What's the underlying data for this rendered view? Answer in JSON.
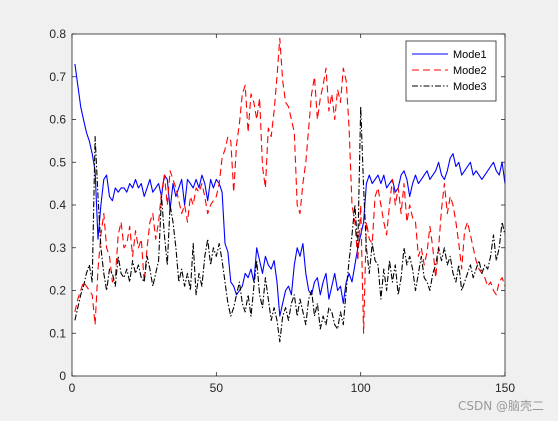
{
  "watermark": "CSDN @脑壳二",
  "chart_data": {
    "type": "line",
    "xlim": [
      0,
      150
    ],
    "ylim": [
      0,
      0.8
    ],
    "xticks": [
      0,
      50,
      100,
      150
    ],
    "yticks": [
      0,
      0.1,
      0.2,
      0.3,
      0.4,
      0.5,
      0.6,
      0.7,
      0.8
    ],
    "grid": false,
    "legend_position": "top-right",
    "x": [
      1,
      2,
      3,
      4,
      5,
      6,
      7,
      8,
      9,
      10,
      11,
      12,
      13,
      14,
      15,
      16,
      17,
      18,
      19,
      20,
      21,
      22,
      23,
      24,
      25,
      26,
      27,
      28,
      29,
      30,
      31,
      32,
      33,
      34,
      35,
      36,
      37,
      38,
      39,
      40,
      41,
      42,
      43,
      44,
      45,
      46,
      47,
      48,
      49,
      50,
      51,
      52,
      53,
      54,
      55,
      56,
      57,
      58,
      59,
      60,
      61,
      62,
      63,
      64,
      65,
      66,
      67,
      68,
      69,
      70,
      71,
      72,
      73,
      74,
      75,
      76,
      77,
      78,
      79,
      80,
      81,
      82,
      83,
      84,
      85,
      86,
      87,
      88,
      89,
      90,
      91,
      92,
      93,
      94,
      95,
      96,
      97,
      98,
      99,
      100,
      101,
      102,
      103,
      104,
      105,
      106,
      107,
      108,
      109,
      110,
      111,
      112,
      113,
      114,
      115,
      116,
      117,
      118,
      119,
      120,
      121,
      122,
      123,
      124,
      125,
      126,
      127,
      128,
      129,
      130,
      131,
      132,
      133,
      134,
      135,
      136,
      137,
      138,
      139,
      140,
      141,
      142,
      143,
      144,
      145,
      146,
      147,
      148,
      149,
      150
    ],
    "series": [
      {
        "name": "Mode1",
        "color": "#0000ff",
        "dash": "solid",
        "values": [
          0.73,
          0.68,
          0.63,
          0.6,
          0.57,
          0.55,
          0.52,
          0.48,
          0.32,
          0.4,
          0.46,
          0.47,
          0.42,
          0.41,
          0.44,
          0.43,
          0.44,
          0.44,
          0.43,
          0.45,
          0.44,
          0.46,
          0.44,
          0.45,
          0.42,
          0.44,
          0.46,
          0.43,
          0.44,
          0.45,
          0.42,
          0.47,
          0.46,
          0.39,
          0.45,
          0.42,
          0.44,
          0.46,
          0.4,
          0.46,
          0.45,
          0.44,
          0.46,
          0.44,
          0.47,
          0.45,
          0.41,
          0.46,
          0.44,
          0.46,
          0.45,
          0.43,
          0.31,
          0.29,
          0.22,
          0.21,
          0.19,
          0.2,
          0.21,
          0.24,
          0.23,
          0.25,
          0.22,
          0.3,
          0.27,
          0.24,
          0.28,
          0.26,
          0.25,
          0.27,
          0.22,
          0.14,
          0.17,
          0.2,
          0.21,
          0.19,
          0.26,
          0.3,
          0.28,
          0.31,
          0.24,
          0.2,
          0.19,
          0.22,
          0.23,
          0.19,
          0.22,
          0.24,
          0.18,
          0.21,
          0.24,
          0.2,
          0.21,
          0.17,
          0.22,
          0.24,
          0.22,
          0.26,
          0.3,
          0.33,
          0.36,
          0.45,
          0.47,
          0.45,
          0.46,
          0.47,
          0.45,
          0.47,
          0.44,
          0.45,
          0.46,
          0.43,
          0.44,
          0.47,
          0.48,
          0.46,
          0.42,
          0.45,
          0.47,
          0.45,
          0.46,
          0.47,
          0.48,
          0.46,
          0.47,
          0.48,
          0.5,
          0.47,
          0.46,
          0.48,
          0.51,
          0.52,
          0.49,
          0.5,
          0.47,
          0.48,
          0.49,
          0.5,
          0.47,
          0.48,
          0.47,
          0.46,
          0.47,
          0.48,
          0.49,
          0.5,
          0.48,
          0.47,
          0.5,
          0.45
        ]
      },
      {
        "name": "Mode2",
        "color": "#ff0000",
        "dash": "7,4",
        "values": [
          0.15,
          0.18,
          0.2,
          0.22,
          0.21,
          0.2,
          0.19,
          0.12,
          0.25,
          0.33,
          0.38,
          0.3,
          0.28,
          0.22,
          0.23,
          0.33,
          0.36,
          0.3,
          0.31,
          0.35,
          0.28,
          0.34,
          0.3,
          0.32,
          0.22,
          0.3,
          0.36,
          0.38,
          0.32,
          0.36,
          0.43,
          0.47,
          0.4,
          0.48,
          0.46,
          0.44,
          0.41,
          0.38,
          0.4,
          0.36,
          0.42,
          0.4,
          0.44,
          0.43,
          0.45,
          0.42,
          0.38,
          0.4,
          0.41,
          0.42,
          0.45,
          0.51,
          0.53,
          0.56,
          0.55,
          0.43,
          0.54,
          0.59,
          0.66,
          0.68,
          0.57,
          0.66,
          0.64,
          0.6,
          0.65,
          0.49,
          0.44,
          0.58,
          0.56,
          0.62,
          0.7,
          0.79,
          0.69,
          0.64,
          0.63,
          0.6,
          0.57,
          0.4,
          0.38,
          0.45,
          0.5,
          0.58,
          0.66,
          0.7,
          0.6,
          0.65,
          0.68,
          0.72,
          0.62,
          0.66,
          0.6,
          0.67,
          0.64,
          0.72,
          0.69,
          0.58,
          0.4,
          0.36,
          0.27,
          0.4,
          0.1,
          0.36,
          0.32,
          0.31,
          0.42,
          0.44,
          0.4,
          0.36,
          0.33,
          0.4,
          0.46,
          0.4,
          0.44,
          0.38,
          0.45,
          0.36,
          0.4,
          0.37,
          0.36,
          0.28,
          0.3,
          0.26,
          0.29,
          0.35,
          0.3,
          0.23,
          0.3,
          0.39,
          0.45,
          0.38,
          0.42,
          0.4,
          0.36,
          0.31,
          0.25,
          0.34,
          0.36,
          0.33,
          0.3,
          0.27,
          0.25,
          0.24,
          0.23,
          0.21,
          0.22,
          0.2,
          0.19,
          0.22,
          0.23,
          0.21
        ]
      },
      {
        "name": "Mode3",
        "color": "#000000",
        "dash": "6,2,1.5,2",
        "values": [
          0.13,
          0.16,
          0.19,
          0.21,
          0.24,
          0.26,
          0.22,
          0.56,
          0.42,
          0.3,
          0.24,
          0.2,
          0.25,
          0.24,
          0.21,
          0.28,
          0.24,
          0.23,
          0.25,
          0.22,
          0.27,
          0.24,
          0.26,
          0.23,
          0.22,
          0.28,
          0.25,
          0.21,
          0.24,
          0.27,
          0.42,
          0.33,
          0.26,
          0.4,
          0.36,
          0.3,
          0.22,
          0.25,
          0.21,
          0.24,
          0.2,
          0.31,
          0.19,
          0.24,
          0.21,
          0.28,
          0.32,
          0.26,
          0.3,
          0.28,
          0.31,
          0.27,
          0.22,
          0.17,
          0.14,
          0.16,
          0.19,
          0.22,
          0.17,
          0.15,
          0.19,
          0.14,
          0.21,
          0.27,
          0.19,
          0.16,
          0.23,
          0.18,
          0.13,
          0.16,
          0.13,
          0.08,
          0.14,
          0.16,
          0.13,
          0.17,
          0.19,
          0.14,
          0.18,
          0.15,
          0.12,
          0.18,
          0.2,
          0.14,
          0.17,
          0.11,
          0.14,
          0.12,
          0.16,
          0.15,
          0.12,
          0.11,
          0.15,
          0.12,
          0.2,
          0.27,
          0.33,
          0.4,
          0.3,
          0.63,
          0.44,
          0.3,
          0.24,
          0.31,
          0.27,
          0.26,
          0.18,
          0.25,
          0.2,
          0.27,
          0.22,
          0.26,
          0.19,
          0.23,
          0.3,
          0.26,
          0.28,
          0.25,
          0.2,
          0.24,
          0.28,
          0.23,
          0.22,
          0.2,
          0.24,
          0.26,
          0.3,
          0.27,
          0.3,
          0.26,
          0.28,
          0.24,
          0.22,
          0.26,
          0.2,
          0.22,
          0.24,
          0.26,
          0.23,
          0.25,
          0.27,
          0.24,
          0.26,
          0.25,
          0.28,
          0.33,
          0.27,
          0.3,
          0.36,
          0.33
        ]
      }
    ]
  }
}
